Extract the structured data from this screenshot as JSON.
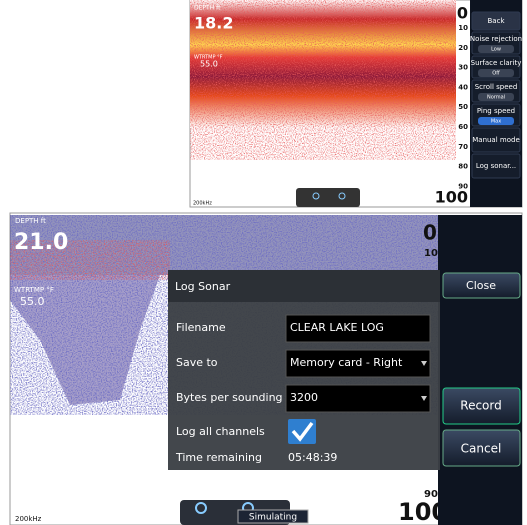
{
  "top_screen": {
    "depth_label": "DEPTH ft",
    "depth": "18.2",
    "temp_label": "WTRTMP °F",
    "temp": "55.0",
    "frequency": "200kHz",
    "scale": [
      "0",
      "10",
      "20",
      "30",
      "40",
      "50",
      "60",
      "70",
      "80",
      "90",
      "100"
    ],
    "menu": [
      {
        "label": "Back"
      },
      {
        "label": "Noise rejection",
        "value": "Low"
      },
      {
        "label": "Surface clarity",
        "value": "Off"
      },
      {
        "label": "Scroll speed",
        "value": "Normal"
      },
      {
        "label": "Ping speed",
        "value": "Max"
      },
      {
        "label": "Manual mode"
      },
      {
        "label": "Log sonar..."
      }
    ]
  },
  "bottom_screen": {
    "depth_label": "DEPTH ft",
    "depth": "21.0",
    "temp_label": "WTRTMP °F",
    "temp": "55.0",
    "frequency": "200kHz",
    "scale": [
      "0",
      "10",
      "90",
      "100"
    ],
    "status": "Simulating",
    "dialog": {
      "title": "Log Sonar",
      "close": "Close",
      "fields": [
        {
          "label": "Filename",
          "value": "CLEAR LAKE LOG"
        },
        {
          "label": "Save to",
          "value": "Memory card - Right"
        },
        {
          "label": "Bytes per sounding",
          "value": "3200"
        }
      ],
      "checkbox_label": "Log all channels",
      "time_label": "Time remaining",
      "time_value": "05:48:39",
      "record": "Record",
      "cancel": "Cancel"
    }
  }
}
